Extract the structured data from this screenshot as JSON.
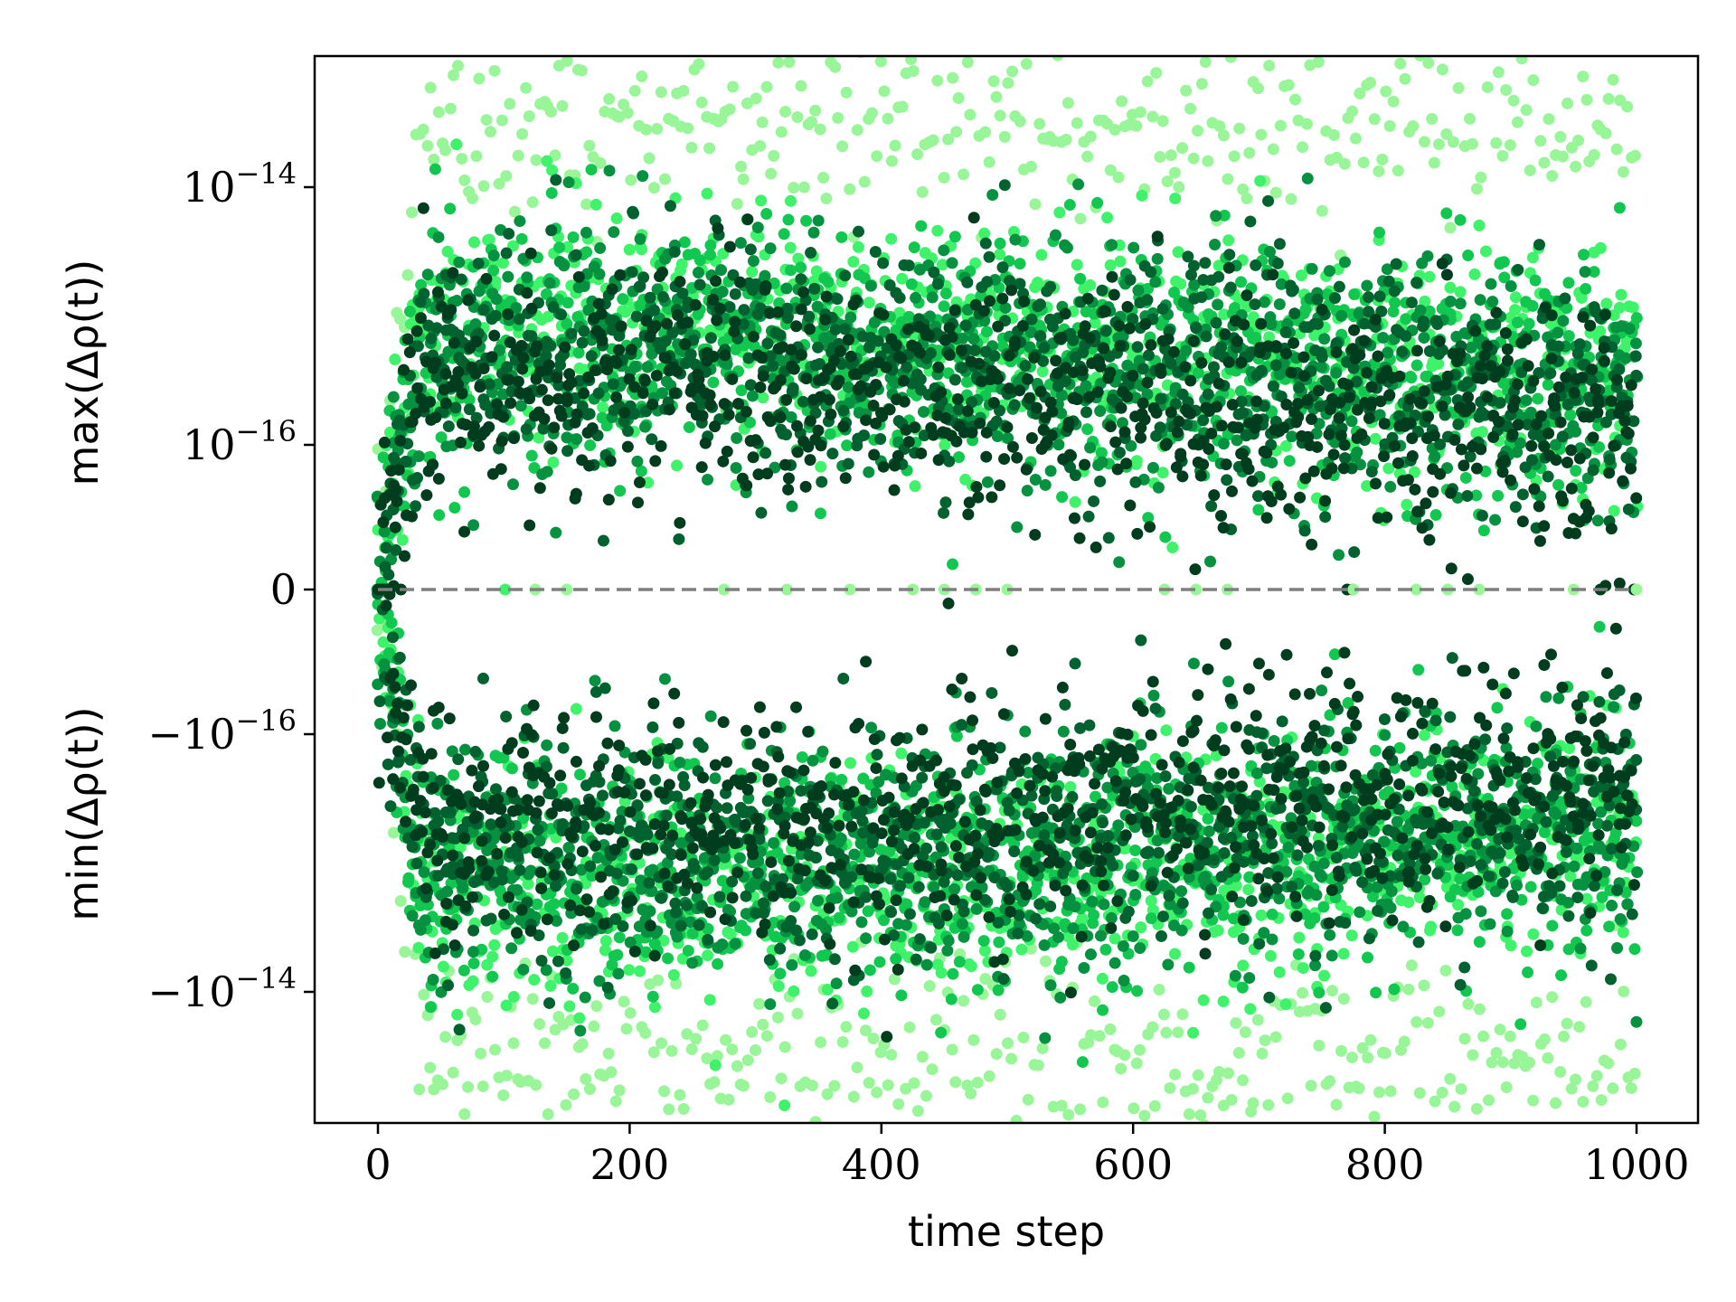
{
  "chart_data": {
    "type": "scatter",
    "title": "",
    "xlabel": "time step",
    "ylabel_top": "max(Δρ(t))",
    "ylabel_bottom": "min(Δρ(t))",
    "x_range": [
      -75,
      1050
    ],
    "y_scale": "symlog",
    "y_linthresh": 1e-17,
    "y_ticks": [
      {
        "value": 1e-14,
        "base": "10",
        "exp": "−14",
        "sign": ""
      },
      {
        "value": 1e-16,
        "base": "10",
        "exp": "−16",
        "sign": ""
      },
      {
        "value": 0,
        "base": "0",
        "exp": "",
        "sign": ""
      },
      {
        "value": -1e-16,
        "base": "10",
        "exp": "−16",
        "sign": "−"
      },
      {
        "value": -1e-14,
        "base": "10",
        "exp": "−14",
        "sign": "−"
      }
    ],
    "x_ticks": [
      0,
      200,
      400,
      600,
      800,
      1000
    ],
    "zero_line": {
      "y": 0,
      "style": "dashed",
      "color": "#7f7f7f"
    },
    "series": [
      {
        "color": "#98f598",
        "band": {
          "start": 0,
          "max_x0": 0,
          "max_typ": 3e-14,
          "min_x0": 0,
          "min_typ": -3e-14
        }
      },
      {
        "color": "#3ef26a",
        "band": {
          "start": 0,
          "max_x0": 0,
          "max_typ": 8e-16,
          "min_x0": 0,
          "min_typ": -1.5e-15
        }
      },
      {
        "color": "#11c74f",
        "band": {
          "start": 0,
          "max_x0": 0,
          "max_typ": 7e-16,
          "min_x0": 0,
          "min_typ": -1.2e-15
        }
      },
      {
        "color": "#059140",
        "band": {
          "start": 0,
          "max_x0": 0,
          "max_typ": 6e-16,
          "min_x0": 0,
          "min_typ": -1e-15
        }
      },
      {
        "color": "#02622f",
        "band": {
          "start": 0,
          "max_x0": 0,
          "max_typ": 5e-16,
          "min_x0": 0,
          "min_typ": -8e-16
        }
      },
      {
        "color": "#003d1e",
        "band": {
          "start": 0,
          "max_x0": 0,
          "max_typ": 3e-16,
          "min_x0": 0,
          "min_typ": -5e-16
        }
      }
    ]
  }
}
